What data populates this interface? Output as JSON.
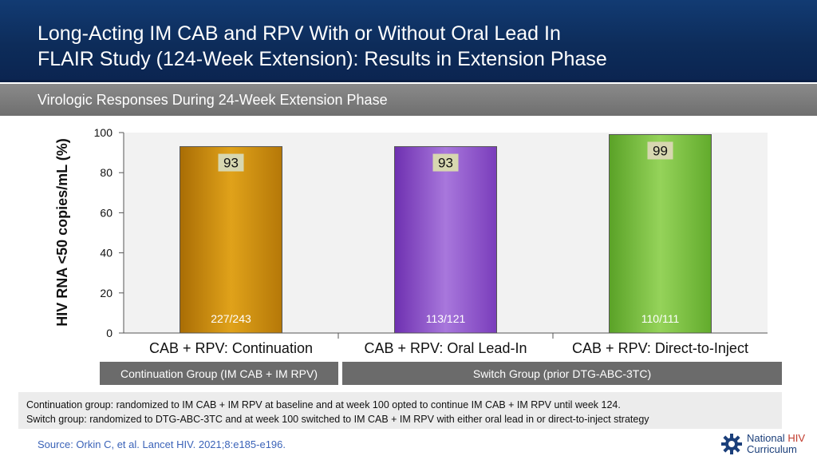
{
  "header": {
    "title_line1": "Long-Acting IM CAB and RPV With or Without Oral Lead In",
    "title_line2": "FLAIR Study (124-Week Extension): Results in Extension Phase"
  },
  "subtitle": "Virologic Responses During 24-Week Extension Phase",
  "chart_data": {
    "type": "bar",
    "title": "Virologic Responses During 24-Week Extension Phase",
    "ylabel": "HIV RNA <50 copies/mL (%)",
    "xlabel": "",
    "ylim": [
      0,
      100
    ],
    "yticks": [
      "0",
      "20",
      "40",
      "60",
      "80",
      "100"
    ],
    "categories": [
      "CAB + RPV: Continuation",
      "CAB + RPV: Oral Lead-In",
      "CAB + RPV: Direct-to-Inject"
    ],
    "values": [
      93,
      93,
      99
    ],
    "value_labels": [
      "93",
      "93",
      "99"
    ],
    "counts": [
      "227/243",
      "113/121",
      "110/111"
    ],
    "colors": [
      "#c98a0a",
      "#8a4fc4",
      "#7cc23c"
    ],
    "grid": false
  },
  "groups": {
    "continuation": "Continuation Group (IM CAB + IM RPV)",
    "switch": "Switch Group (prior DTG-ABC-3TC)"
  },
  "notes": {
    "line1": "Continuation group: randomized to IM CAB + IM RPV at baseline and at week 100 opted to continue IM CAB + IM RPV until week 124.",
    "line2": "Switch group: randomized to DTG-ABC-3TC and at week 100 switched to IM CAB + IM RPV with either oral lead in or direct-to-inject strategy"
  },
  "source": "Source: Orkin C, et al. Lancet HIV. 2021;8:e185-e196.",
  "logo": {
    "line1_a": "National",
    "line1_b": "HIV",
    "line2": "Curriculum",
    "icon": "gear-icon"
  }
}
